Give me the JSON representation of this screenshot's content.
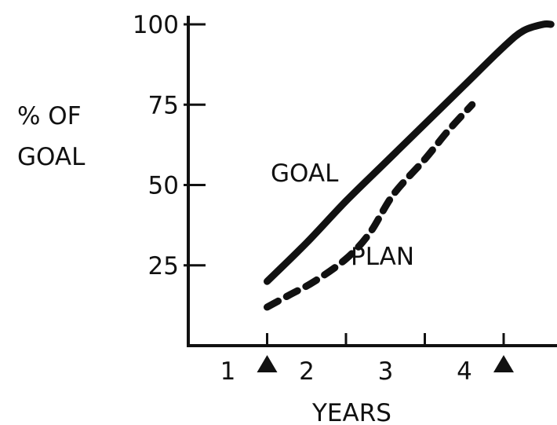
{
  "chart_data": {
    "type": "line",
    "title": "",
    "xlabel": "YEARS",
    "ylabel": "% OF GOAL",
    "xlim": [
      0,
      4.7
    ],
    "ylim": [
      0,
      100
    ],
    "x_ticks": [
      1,
      2,
      3,
      4
    ],
    "x_tick_labels": [
      "1",
      "2",
      "3",
      "4"
    ],
    "y_ticks": [
      25,
      50,
      75,
      100
    ],
    "y_tick_labels": [
      "25",
      "50",
      "75",
      "100"
    ],
    "grid": false,
    "legend": "none",
    "series": [
      {
        "name": "GOAL",
        "style": "solid",
        "color": "#111111",
        "x": [
          1.0,
          1.5,
          2.0,
          2.5,
          3.0,
          3.5,
          4.0,
          4.25,
          4.5,
          4.6
        ],
        "y": [
          20,
          32,
          45,
          57,
          69,
          81,
          93,
          98,
          100,
          100
        ]
      },
      {
        "name": "PLAN",
        "style": "dashed",
        "color": "#111111",
        "x": [
          1.0,
          1.3,
          1.6,
          2.0,
          2.3,
          2.6,
          3.0,
          3.3,
          3.6
        ],
        "y": [
          12,
          16,
          20,
          27,
          35,
          47,
          58,
          67,
          75
        ]
      }
    ],
    "markers": [
      {
        "shape": "triangle",
        "x": 1.0
      },
      {
        "shape": "triangle",
        "x": 4.0
      }
    ]
  }
}
